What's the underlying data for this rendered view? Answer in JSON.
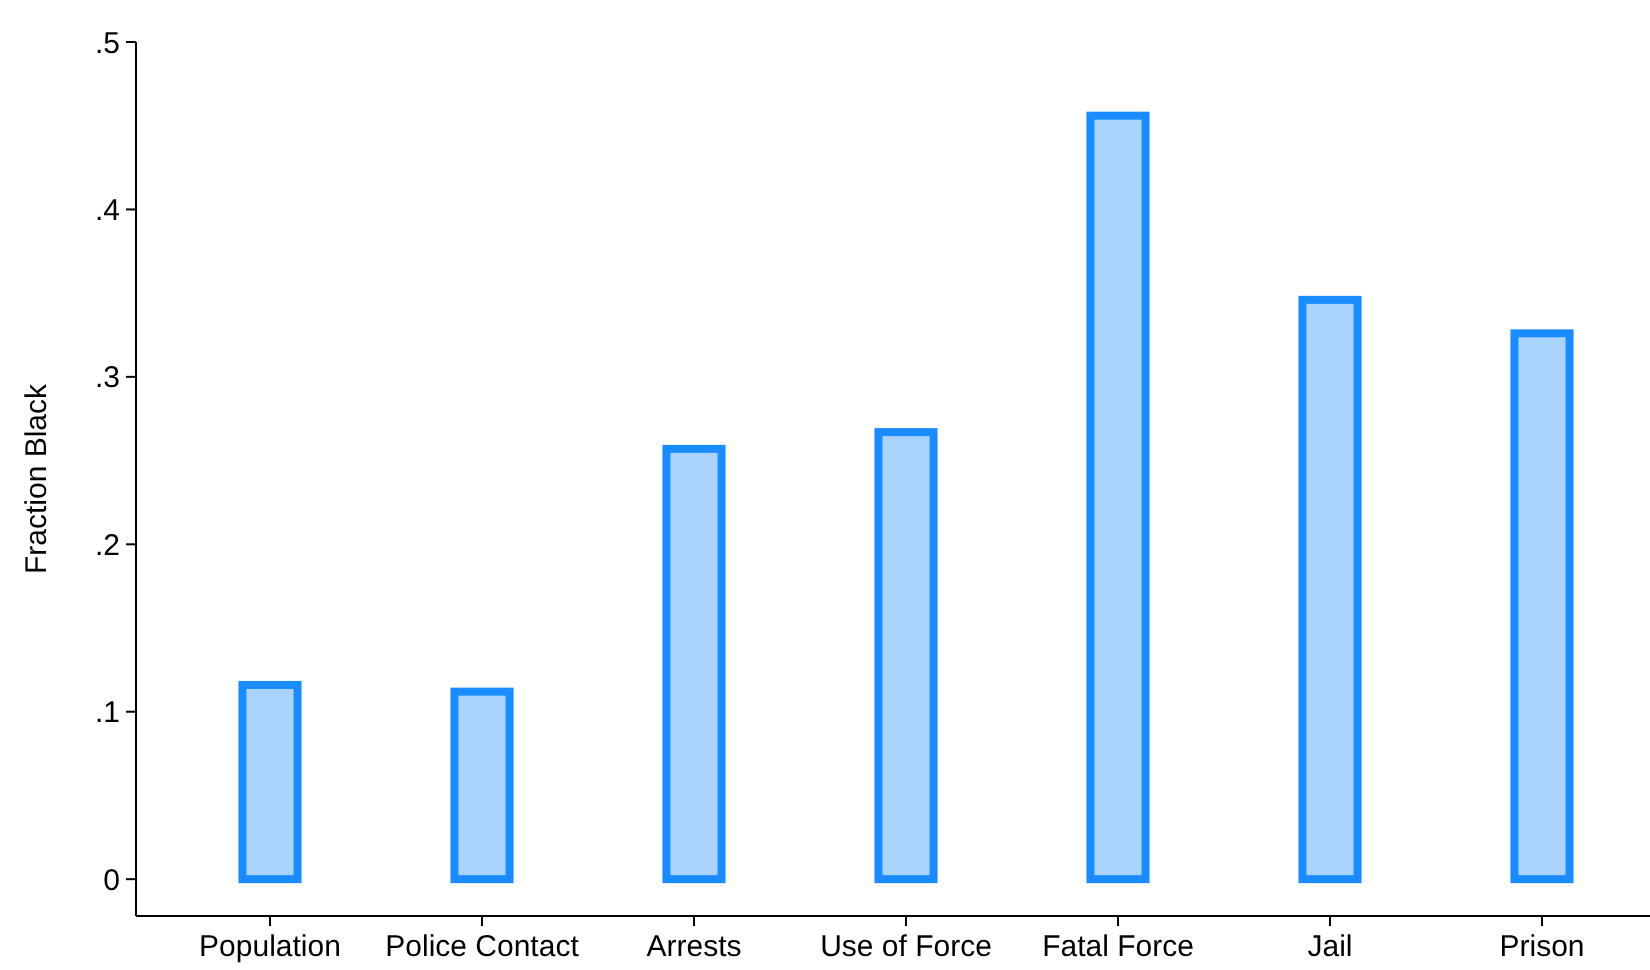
{
  "chart_data": {
    "type": "bar",
    "ylabel": "Fraction Black",
    "categories": [
      "Population",
      "Police Contact",
      "Arrests",
      "Use of Force",
      "Fatal Force",
      "Jail",
      "Prison"
    ],
    "values": [
      0.116,
      0.112,
      0.257,
      0.267,
      0.456,
      0.346,
      0.326
    ],
    "color": "#a9d3fb",
    "ylim": [
      -0.022,
      0.5
    ],
    "yticks": [
      0,
      {
        "value": 0.1,
        "label": ".1"
      },
      {
        "value": 0.2,
        "label": ".2"
      },
      {
        "value": 0.3,
        "label": ".3"
      },
      {
        "value": 0.4,
        "label": ".4"
      },
      {
        "value": 0.5,
        "label": ".5"
      }
    ],
    "grid": false
  }
}
